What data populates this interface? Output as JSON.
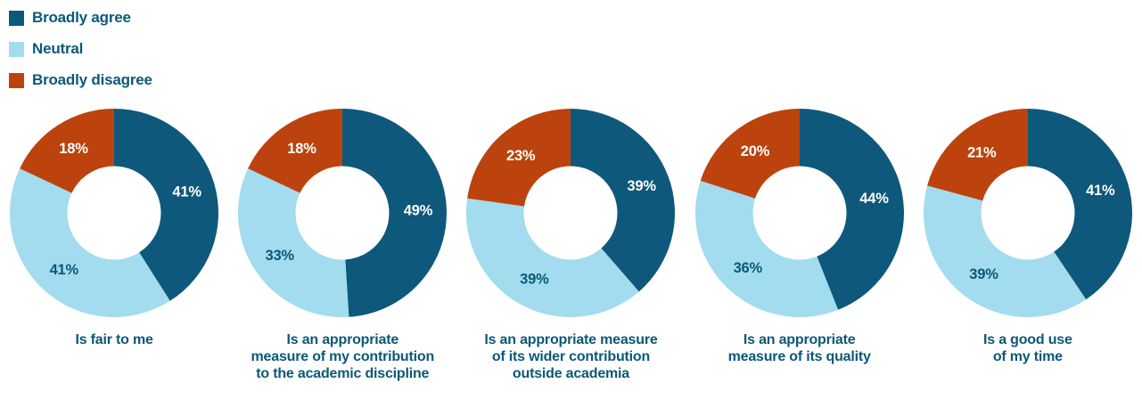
{
  "colors": {
    "agree": "#0E587B",
    "neutral": "#A2DCEE",
    "disagree": "#BC430E",
    "label_on_dark": "#FFFFFF",
    "label_on_light": "#0B5878",
    "text": "#0B5878",
    "background": "#FFFFFF"
  },
  "legend": {
    "items": [
      {
        "label": "Broadly agree",
        "color_key": "agree"
      },
      {
        "label": "Neutral",
        "color_key": "neutral"
      },
      {
        "label": "Broadly disagree",
        "color_key": "disagree"
      }
    ]
  },
  "chart_data": {
    "type": "pie",
    "variant": "donut",
    "legend_position": "top-left",
    "start_angle": "top",
    "direction": "clockwise",
    "series": [
      {
        "name": "Broadly agree",
        "color_key": "agree",
        "label_color_key": "label_on_dark"
      },
      {
        "name": "Neutral",
        "color_key": "neutral",
        "label_color_key": "label_on_light"
      },
      {
        "name": "Broadly disagree",
        "color_key": "disagree",
        "label_color_key": "label_on_dark"
      }
    ],
    "value_suffix": "%",
    "charts": [
      {
        "title": "Is fair to me",
        "values": [
          41,
          41,
          18
        ],
        "labels": [
          "41%",
          "41%",
          "18%"
        ]
      },
      {
        "title": "Is an appropriate\nmeasure of my contribution\nto the academic discipline",
        "values": [
          49,
          33,
          18
        ],
        "labels": [
          "49%",
          "33%",
          "18%"
        ]
      },
      {
        "title": "Is an appropriate measure\nof its wider contribution\noutside academia",
        "values": [
          39,
          39,
          23
        ],
        "labels": [
          "39%",
          "39%",
          "23%"
        ]
      },
      {
        "title": "Is an appropriate\nmeasure of its quality",
        "values": [
          44,
          36,
          20
        ],
        "labels": [
          "44%",
          "36%",
          "20%"
        ]
      },
      {
        "title": "Is a good use\nof my time",
        "values": [
          41,
          39,
          21
        ],
        "labels": [
          "41%",
          "39%",
          "21%"
        ]
      }
    ],
    "geometry": {
      "outer_radius": 117,
      "inner_radius": 52.5,
      "label_radius": 85
    }
  }
}
